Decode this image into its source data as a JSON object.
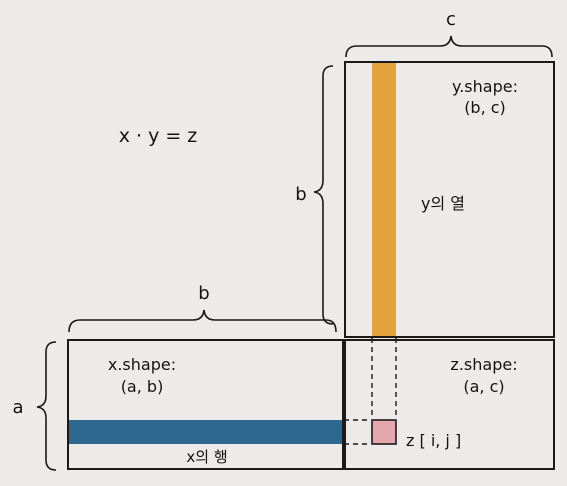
{
  "equation": "x · y = z",
  "dims": {
    "c_top": "c",
    "b_left": "b",
    "b_bottom": "b",
    "a_left": "a"
  },
  "y_matrix": {
    "shape_line1": "y.shape:",
    "shape_line2": "(b, c)",
    "column_label": "y의 열"
  },
  "x_matrix": {
    "shape_line1": "x.shape:",
    "shape_line2": "(a, b)",
    "row_label": "x의 행"
  },
  "z_matrix": {
    "shape_line1": "z.shape:",
    "shape_line2": "(a, c)",
    "element_label": "z [ i,  j ]"
  },
  "colors": {
    "background": "#ecebe9",
    "outline": "#1a1a1a",
    "y_column": "#e3a33c",
    "x_row": "#2e6890",
    "z_element": "#e4a7ad"
  }
}
